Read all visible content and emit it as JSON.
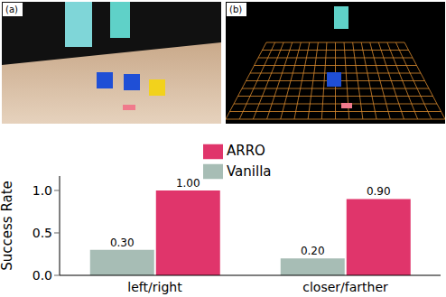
{
  "panels": [
    "(a)",
    "(b)"
  ],
  "chart_data": {
    "type": "bar",
    "categories": [
      "left/right",
      "closer/farther"
    ],
    "series": [
      {
        "name": "Vanilla",
        "color": "#a7bdb5",
        "values": [
          0.3,
          0.2
        ],
        "value_labels": [
          "0.30",
          "0.20"
        ]
      },
      {
        "name": "ARRO",
        "color": "#e0356b",
        "values": [
          1.0,
          0.9
        ],
        "value_labels": [
          "1.00",
          "0.90"
        ]
      }
    ],
    "ylabel": "Success Rate",
    "ylim": [
      0,
      1.17
    ],
    "yticks": [
      {
        "value": 0,
        "label": "0.0"
      },
      {
        "value": 0.5,
        "label": "0.5"
      },
      {
        "value": 1.0,
        "label": "1.0"
      }
    ],
    "data_labels": true,
    "legend": "upper center"
  }
}
